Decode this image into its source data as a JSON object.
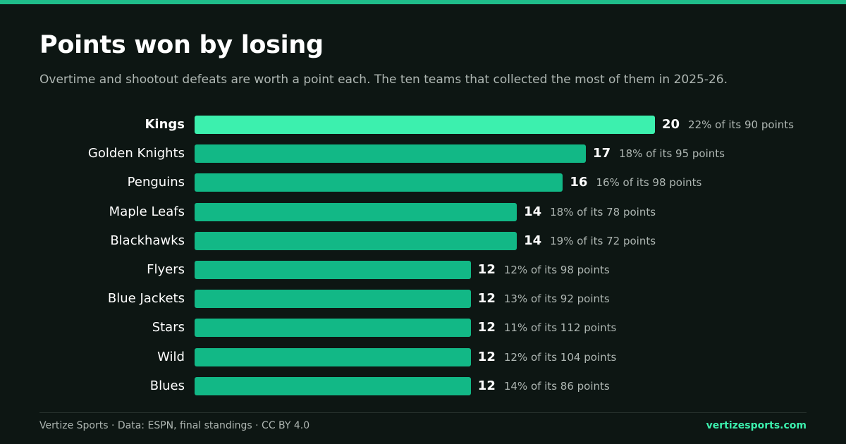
{
  "title": "Points won by losing",
  "subtitle": "Overtime and shootout defeats are worth a point each. The ten teams that collected the most of them in 2025-26.",
  "footer": {
    "source": "Vertize Sports · Data: ESPN, final standings · CC BY 4.0",
    "brand": "vertizesports.com"
  },
  "colors": {
    "background": "#0d1613",
    "bar": "#12b886",
    "bar_highlight": "#3cf0ae",
    "accent": "#1fbd8a"
  },
  "chart_data": {
    "type": "bar",
    "orientation": "horizontal",
    "categories": [
      "Kings",
      "Golden Knights",
      "Penguins",
      "Maple Leafs",
      "Blackhawks",
      "Flyers",
      "Blue Jackets",
      "Stars",
      "Wild",
      "Blues"
    ],
    "values": [
      20,
      17,
      16,
      14,
      14,
      12,
      12,
      12,
      12,
      12
    ],
    "annotations": [
      "22% of its 90 points",
      "18% of its 95 points",
      "16% of its 98 points",
      "18% of its 78 points",
      "19% of its 72 points",
      "12% of its 98 points",
      "13% of its 92 points",
      "11% of its 112 points",
      "12% of its 104 points",
      "14% of its 86 points"
    ],
    "highlighted": "Kings",
    "xlim": [
      0,
      20
    ],
    "grid": false,
    "xlabel": "",
    "ylabel": ""
  }
}
